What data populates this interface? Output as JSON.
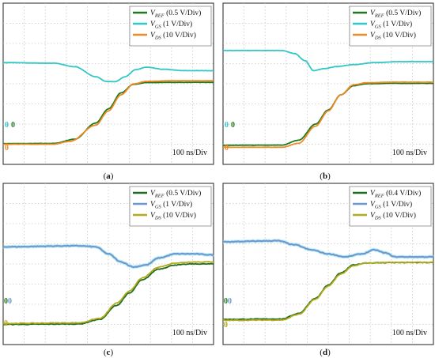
{
  "chart_data": [
    {
      "panel_label": "(a)",
      "type": "line",
      "x_unit_label": "100 ns/Div",
      "x_divisions": 10,
      "y_divisions": 8,
      "grid": true,
      "legend_position": "top-right",
      "ground_markers": [
        {
          "text": "0",
          "color": "#2fc7c7"
        },
        {
          "text": "0",
          "color": "#1f7a1f"
        },
        {
          "text": "0",
          "color": "#f08a24"
        }
      ],
      "series": [
        {
          "name_main": "V",
          "name_sub": "REF",
          "scale": "(0.5 V/Div)",
          "color": "#1f7a1f",
          "x": [
            0,
            2.4,
            3.4,
            4.4,
            5.0,
            5.6,
            6.2,
            6.8,
            8,
            10
          ],
          "y": [
            1.03,
            1.04,
            1.25,
            2.05,
            2.75,
            3.55,
            3.97,
            4.06,
            4.07,
            4.07
          ]
        },
        {
          "name_main": "V",
          "name_sub": "GS",
          "scale": "(1 V/Div)",
          "color": "#2fc7c7",
          "x": [
            0,
            2.4,
            3.4,
            4.4,
            4.9,
            5.3,
            5.8,
            6.3,
            6.8,
            7.6,
            8.6,
            10
          ],
          "y": [
            5.05,
            5.02,
            4.85,
            4.35,
            4.12,
            4.1,
            4.35,
            4.7,
            4.82,
            4.72,
            4.65,
            4.65
          ]
        },
        {
          "name_main": "V",
          "name_sub": "DS",
          "scale": "(10 V/Div)",
          "color": "#f08a24",
          "x": [
            0,
            2.4,
            3.2,
            4.4,
            5.0,
            5.6,
            6.2,
            6.8,
            8,
            10
          ],
          "y": [
            1.0,
            1.0,
            1.15,
            1.95,
            2.65,
            3.45,
            4.0,
            4.12,
            4.15,
            4.15
          ]
        }
      ]
    },
    {
      "panel_label": "(b)",
      "type": "line",
      "x_unit_label": "100 ns/Div",
      "x_divisions": 10,
      "y_divisions": 8,
      "grid": true,
      "legend_position": "top-right",
      "ground_markers": [
        {
          "text": "0",
          "color": "#2fc7c7"
        },
        {
          "text": "0",
          "color": "#1f7a1f"
        },
        {
          "text": "0",
          "color": "#f08a24"
        }
      ],
      "series": [
        {
          "name_main": "V",
          "name_sub": "REF",
          "scale": "(0.5 V/Div)",
          "color": "#1f7a1f",
          "x": [
            0,
            2.8,
            3.6,
            4.4,
            5.0,
            5.6,
            6.2,
            6.8,
            8,
            10
          ],
          "y": [
            0.95,
            0.96,
            1.2,
            2.0,
            2.7,
            3.45,
            3.9,
            4.0,
            4.02,
            4.02
          ]
        },
        {
          "name_main": "V",
          "name_sub": "GS",
          "scale": "(1 V/Div)",
          "color": "#2fc7c7",
          "x": [
            0,
            2.8,
            3.4,
            3.9,
            4.3,
            4.8,
            5.4,
            6.2,
            7.2,
            8.4,
            10
          ],
          "y": [
            5.65,
            5.65,
            5.5,
            5.15,
            4.65,
            4.75,
            4.85,
            4.95,
            5.05,
            5.1,
            5.1
          ]
        },
        {
          "name_main": "V",
          "name_sub": "DS",
          "scale": "(10 V/Div)",
          "color": "#f08a24",
          "x": [
            0,
            2.8,
            3.6,
            4.4,
            5.0,
            5.6,
            6.2,
            6.8,
            8,
            10
          ],
          "y": [
            0.85,
            0.85,
            1.05,
            1.9,
            2.65,
            3.45,
            3.95,
            4.05,
            4.08,
            4.08
          ]
        }
      ]
    },
    {
      "panel_label": "(c)",
      "type": "line",
      "x_unit_label": "100 ns/Div",
      "x_divisions": 10,
      "y_divisions": 8,
      "grid": true,
      "legend_position": "top-right",
      "ground_markers": [
        {
          "text": "0",
          "color": "#6a9ad0"
        },
        {
          "text": "0",
          "color": "#1f7a1f"
        },
        {
          "text": "0",
          "color": "#b5aa1e"
        }
      ],
      "series": [
        {
          "name_main": "V",
          "name_sub": "REF",
          "scale": "(0.5 V/Div)",
          "color": "#1f6e1f",
          "x": [
            0,
            3.6,
            4.6,
            5.4,
            6.0,
            6.6,
            7.4,
            8.2,
            9,
            10
          ],
          "y": [
            1.0,
            1.02,
            1.25,
            1.95,
            2.55,
            3.2,
            3.75,
            3.95,
            4.0,
            4.0
          ]
        },
        {
          "name_main": "V",
          "name_sub": "GS",
          "scale": "(1 V/Div)",
          "color": "#6a9ad0",
          "x": [
            0,
            3.6,
            4.4,
            5.0,
            5.6,
            6.2,
            6.8,
            7.4,
            8.2,
            9.0,
            10
          ],
          "y": [
            4.85,
            4.9,
            4.85,
            4.5,
            4.1,
            3.85,
            3.95,
            4.3,
            4.5,
            4.5,
            4.45
          ]
        },
        {
          "name_main": "V",
          "name_sub": "DS",
          "scale": "(10 V/Div)",
          "color": "#b5aa1e",
          "x": [
            0,
            3.6,
            4.6,
            5.4,
            6.0,
            6.6,
            7.4,
            8.2,
            9,
            10
          ],
          "y": [
            1.05,
            1.08,
            1.3,
            2.05,
            2.65,
            3.3,
            3.85,
            4.05,
            4.1,
            4.1
          ]
        }
      ]
    },
    {
      "panel_label": "(d)",
      "type": "line",
      "x_unit_label": "100 ns/Div",
      "x_divisions": 10,
      "y_divisions": 8,
      "grid": true,
      "legend_position": "top-right",
      "ground_markers": [
        {
          "text": "0",
          "color": "#6a9ad0"
        },
        {
          "text": "0",
          "color": "#1f7a1f"
        },
        {
          "text": "0",
          "color": "#b5aa1e"
        }
      ],
      "series": [
        {
          "name_main": "V",
          "name_sub": "REF",
          "scale": "(0.4 V/Div)",
          "color": "#1f6e1f",
          "x": [
            0,
            2.8,
            3.6,
            4.4,
            5.0,
            5.6,
            6.2,
            6.8,
            8,
            10
          ],
          "y": [
            1.25,
            1.27,
            1.55,
            2.3,
            2.95,
            3.55,
            3.95,
            4.05,
            4.07,
            4.07
          ]
        },
        {
          "name_main": "V",
          "name_sub": "GS",
          "scale": "(1 V/Div)",
          "color": "#6a9ad0",
          "x": [
            0,
            2.6,
            3.4,
            4.2,
            5.0,
            5.8,
            6.6,
            7.2,
            7.7,
            8.2,
            9.0,
            10
          ],
          "y": [
            5.1,
            5.15,
            4.95,
            4.7,
            4.5,
            4.35,
            4.5,
            4.7,
            4.55,
            4.35,
            4.35,
            4.35
          ]
        },
        {
          "name_main": "V",
          "name_sub": "DS",
          "scale": "(10 V/Div)",
          "color": "#b5aa1e",
          "x": [
            0,
            2.8,
            3.6,
            4.4,
            5.0,
            5.6,
            6.2,
            6.8,
            8,
            10
          ],
          "y": [
            1.2,
            1.22,
            1.5,
            2.25,
            2.9,
            3.5,
            3.9,
            4.05,
            4.08,
            4.08
          ]
        }
      ]
    }
  ]
}
